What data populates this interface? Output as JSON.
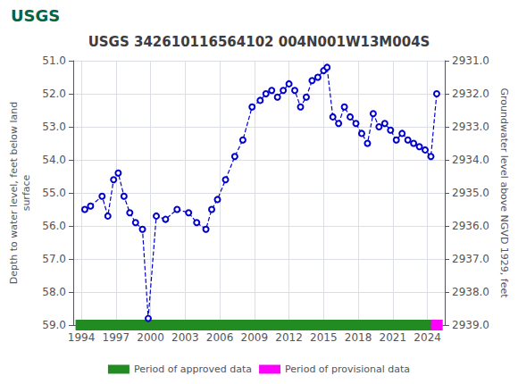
{
  "chart_data": {
    "type": "line",
    "title": "USGS 342610116564102 004N001W13M004S",
    "annotations": [
      {
        "text": "USGS",
        "color": "#006644"
      }
    ],
    "ylabel": "Depth to water level, feet below land\nsurface",
    "y2label": "Groundwater level above NGVD 1929, feet",
    "xlim": [
      1993.3,
      2025.5
    ],
    "xticks": [
      1994,
      1997,
      2000,
      2003,
      2006,
      2009,
      2012,
      2015,
      2018,
      2021,
      2024
    ],
    "ylim": [
      59.0,
      51.0
    ],
    "yticks": [
      {
        "value": 51.0,
        "label": "51.0"
      },
      {
        "value": 52.0,
        "label": "52.0"
      },
      {
        "value": 53.0,
        "label": "53.0"
      },
      {
        "value": 54.0,
        "label": "54.0"
      },
      {
        "value": 55.0,
        "label": "55.0"
      },
      {
        "value": 56.0,
        "label": "56.0"
      },
      {
        "value": 57.0,
        "label": "57.0"
      },
      {
        "value": 58.0,
        "label": "58.0"
      },
      {
        "value": 59.0,
        "label": "59.0"
      }
    ],
    "y2lim": [
      2939.0,
      2931.0
    ],
    "y2ticks": [
      {
        "value": 2939.0,
        "label": "2939.0"
      },
      {
        "value": 2938.0,
        "label": "2938.0"
      },
      {
        "value": 2937.0,
        "label": "2937.0"
      },
      {
        "value": 2936.0,
        "label": "2936.0"
      },
      {
        "value": 2935.0,
        "label": "2935.0"
      },
      {
        "value": 2934.0,
        "label": "2934.0"
      },
      {
        "value": 2933.0,
        "label": "2933.0"
      },
      {
        "value": 2932.0,
        "label": "2932.0"
      },
      {
        "value": 2931.0,
        "label": "2931.0"
      }
    ],
    "grid": true,
    "legend": "bottom",
    "series": [
      {
        "type": "line",
        "color": "#0000cc",
        "marker": "circle",
        "line_style": "dashed",
        "x": [
          1994.3,
          1994.8,
          1995.8,
          1996.3,
          1996.8,
          1997.2,
          1997.7,
          1998.2,
          1998.7,
          1999.3,
          1999.8,
          2000.5,
          2001.3,
          2002.3,
          2003.3,
          2004.0,
          2004.8,
          2005.3,
          2005.8,
          2006.5,
          2007.3,
          2008.0,
          2008.8,
          2009.5,
          2010.0,
          2010.5,
          2011.0,
          2011.5,
          2012.0,
          2012.5,
          2013.0,
          2013.5,
          2014.0,
          2014.5,
          2015.0,
          2015.3,
          2015.8,
          2016.3,
          2016.8,
          2017.3,
          2017.8,
          2018.3,
          2018.8,
          2019.3,
          2019.8,
          2020.3,
          2020.8,
          2021.3,
          2021.8,
          2022.3,
          2022.8,
          2023.3,
          2023.8,
          2024.3,
          2024.8
        ],
        "values": [
          55.5,
          55.4,
          55.1,
          55.7,
          54.6,
          54.4,
          55.1,
          55.6,
          55.9,
          56.1,
          58.8,
          55.7,
          55.8,
          55.5,
          55.6,
          55.9,
          56.1,
          55.5,
          55.2,
          54.6,
          53.9,
          53.4,
          52.4,
          52.2,
          52.0,
          51.9,
          52.1,
          51.9,
          51.7,
          51.9,
          52.4,
          52.1,
          51.6,
          51.5,
          51.3,
          51.2,
          52.7,
          52.9,
          52.4,
          52.7,
          52.9,
          53.2,
          53.5,
          52.6,
          53.0,
          52.9,
          53.1,
          53.4,
          53.2,
          53.4,
          53.5,
          53.6,
          53.7,
          53.9,
          52.0
        ]
      },
      {
        "name": "Period of approved data",
        "type": "bar",
        "orientation": "horizontal",
        "color": "#228B22",
        "start": 1993.5,
        "end": 2025.3,
        "y": 59.0
      },
      {
        "name": "Period of provisional data",
        "type": "bar",
        "orientation": "horizontal",
        "color": "#ff00ff",
        "start": 2024.3,
        "end": 2025.3,
        "y": 59.0
      }
    ]
  }
}
